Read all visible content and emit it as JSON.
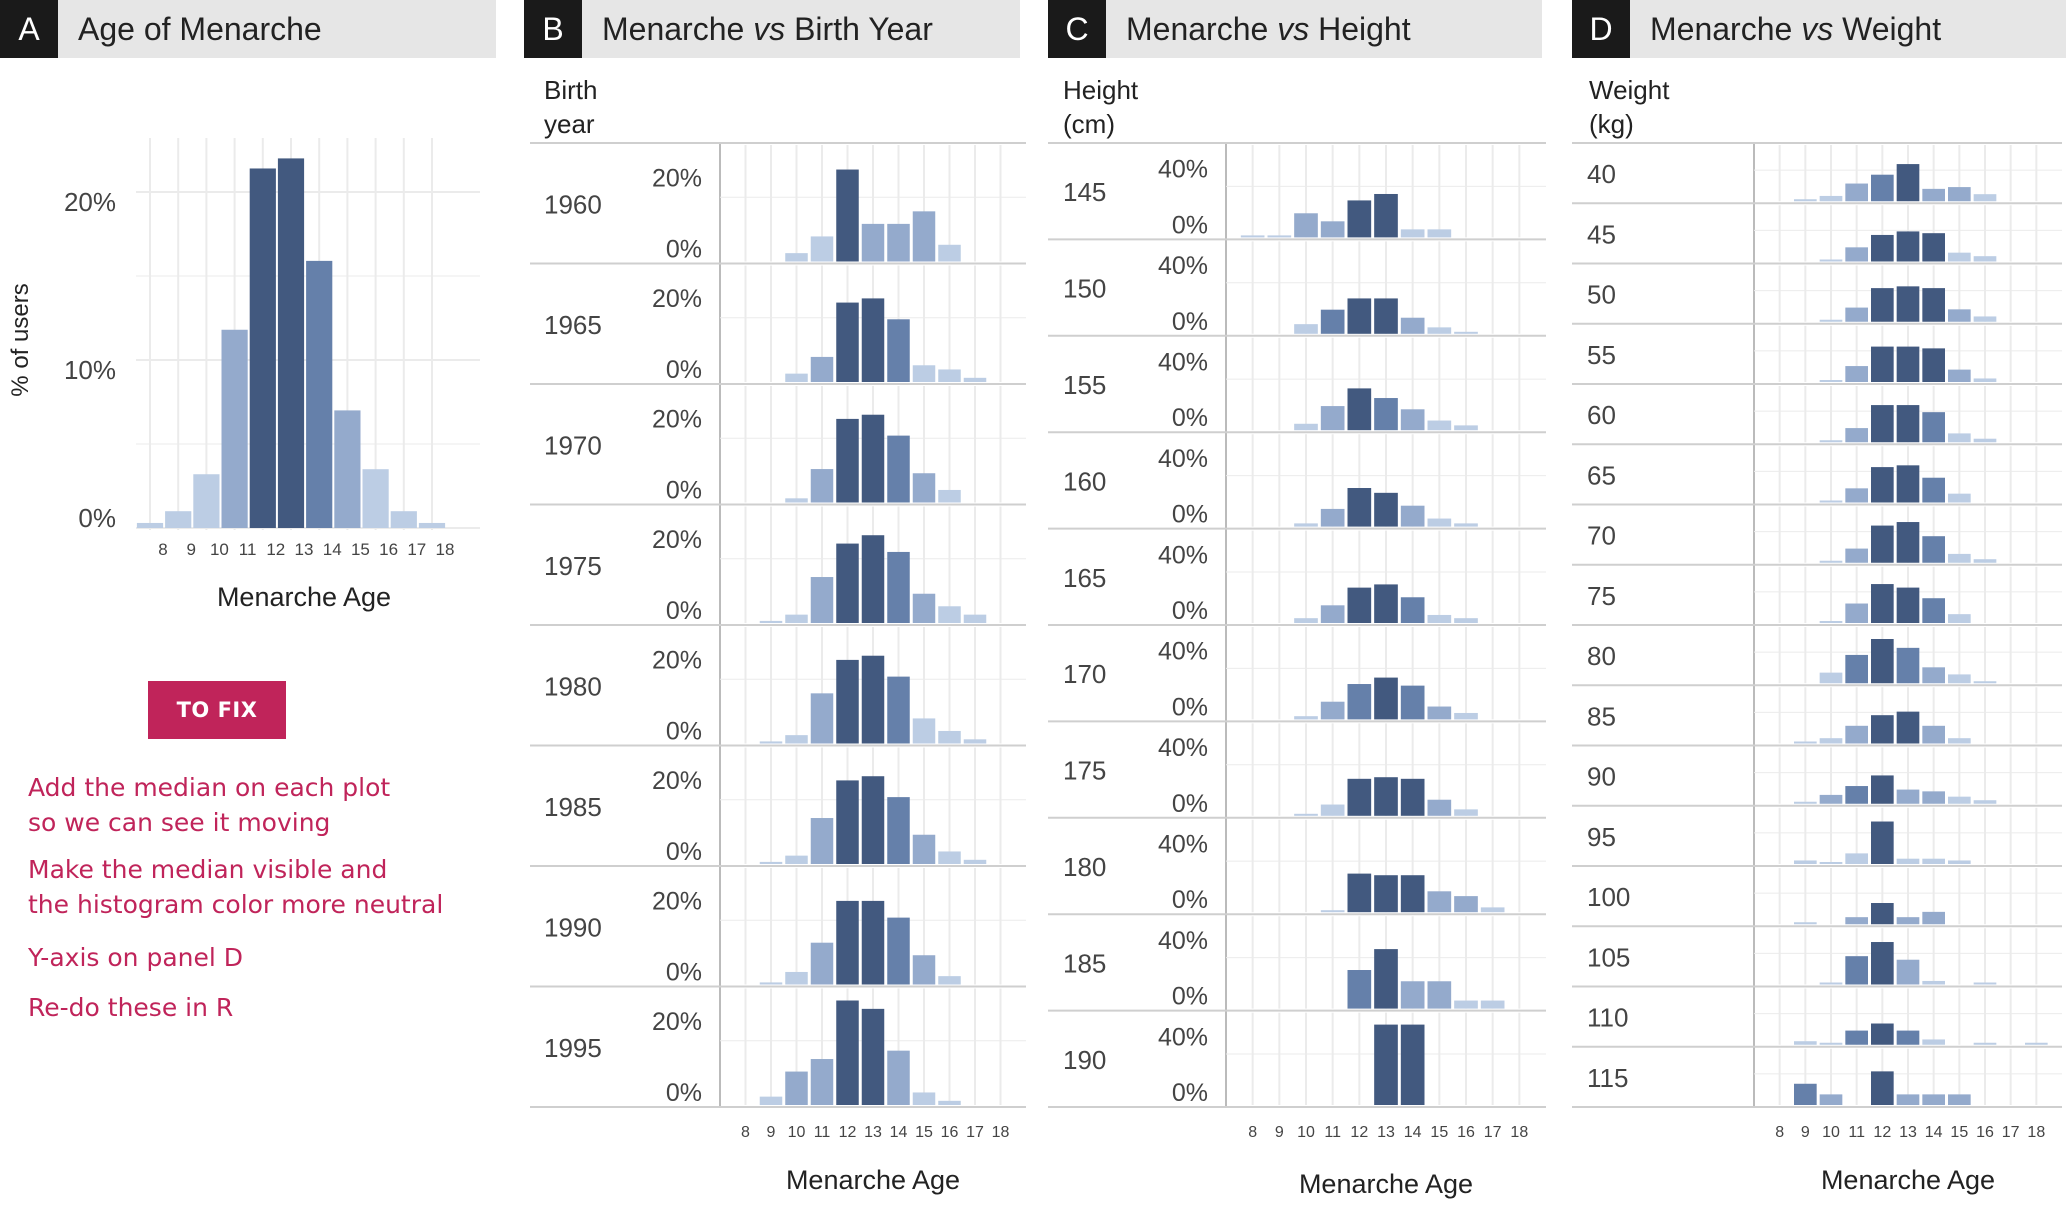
{
  "colors": {
    "dark": "#42597f",
    "mid": "#6580aa",
    "light": "#94aacc",
    "pale": "#bccde4",
    "grid": "#ebebeb",
    "header": "#e6e6e6",
    "badge": "#1a1a1a",
    "accent": "#c0245a"
  },
  "fix": {
    "button_label": "TO FIX",
    "notes": [
      "Add the median on each plot\nso we can see it moving",
      "Make the median visible and\nthe histogram color more neutral",
      "Y-axis on panel D",
      "Re-do these in R"
    ]
  },
  "chart_data": [
    {
      "id": "A",
      "letter": "A",
      "type": "bar",
      "title_parts": [
        {
          "t": "Age of Menarche",
          "i": false
        }
      ],
      "xlabel": "Menarche Age",
      "ylabel": "% of users",
      "categories": [
        "8",
        "9",
        "10",
        "11",
        "12",
        "13",
        "14",
        "15",
        "16",
        "17",
        "18"
      ],
      "yticks": [
        "0%",
        "10%",
        "20%"
      ],
      "values": [
        0.3,
        1.0,
        3.2,
        11.8,
        21.4,
        22.0,
        15.9,
        7.0,
        3.5,
        1.0,
        0.3
      ]
    },
    {
      "id": "B",
      "letter": "B",
      "type": "bar",
      "title_parts": [
        {
          "t": "Menarche ",
          "i": false
        },
        {
          "t": "vs",
          "i": true
        },
        {
          "t": " Birth Year",
          "i": false
        }
      ],
      "xlabel": "Menarche Age",
      "facet_label": [
        "Birth",
        "year"
      ],
      "categories": [
        "8",
        "9",
        "10",
        "11",
        "12",
        "13",
        "14",
        "15",
        "16",
        "17",
        "18"
      ],
      "yticks": [
        "0%",
        "20%"
      ],
      "facets": [
        {
          "label": "1960",
          "values": [
            0,
            0,
            2,
            6,
            22,
            9,
            9,
            12,
            4,
            0,
            0
          ]
        },
        {
          "label": "1965",
          "values": [
            0,
            0,
            2,
            6,
            19,
            20,
            15,
            4,
            3,
            1,
            0
          ]
        },
        {
          "label": "1970",
          "values": [
            0,
            0,
            1,
            8,
            20,
            21,
            16,
            7,
            3,
            0,
            0
          ]
        },
        {
          "label": "1975",
          "values": [
            0,
            0.5,
            2,
            11,
            19,
            21,
            17,
            7,
            4,
            2,
            0
          ]
        },
        {
          "label": "1980",
          "values": [
            0,
            0.5,
            2,
            12,
            20,
            21,
            16,
            6,
            3,
            1,
            0
          ]
        },
        {
          "label": "1985",
          "values": [
            0,
            0.5,
            2,
            11,
            20,
            21,
            16,
            7,
            3,
            1,
            0
          ]
        },
        {
          "label": "1990",
          "values": [
            0,
            0.5,
            3,
            10,
            20,
            20,
            16,
            7,
            2,
            0,
            0
          ]
        },
        {
          "label": "1995",
          "values": [
            0,
            2,
            8,
            11,
            25,
            23,
            13,
            3,
            1,
            0,
            0
          ]
        }
      ]
    },
    {
      "id": "C",
      "letter": "C",
      "type": "bar",
      "title_parts": [
        {
          "t": "Menarche ",
          "i": false
        },
        {
          "t": "vs",
          "i": true
        },
        {
          "t": " Height",
          "i": false
        }
      ],
      "xlabel": "Menarche Age",
      "facet_label": [
        "Height",
        "(cm)"
      ],
      "categories": [
        "8",
        "9",
        "10",
        "11",
        "12",
        "13",
        "14",
        "15",
        "16",
        "17",
        "18"
      ],
      "yticks": [
        "0%",
        "40%"
      ],
      "facets": [
        {
          "label": "145",
          "values": [
            1,
            1,
            15,
            10,
            23,
            27,
            5,
            5,
            0,
            0,
            0
          ]
        },
        {
          "label": "150",
          "values": [
            0,
            0,
            6,
            15,
            22,
            22,
            10,
            4,
            1,
            0,
            0
          ]
        },
        {
          "label": "155",
          "values": [
            0,
            0,
            4,
            15,
            26,
            20,
            13,
            6,
            3,
            0,
            0
          ]
        },
        {
          "label": "160",
          "values": [
            0,
            0,
            2,
            11,
            24,
            21,
            13,
            5,
            2,
            0,
            0
          ]
        },
        {
          "label": "165",
          "values": [
            0,
            0,
            3,
            11,
            22,
            24,
            16,
            5,
            3,
            0,
            0
          ]
        },
        {
          "label": "170",
          "values": [
            0,
            0,
            2,
            11,
            22,
            26,
            21,
            8,
            4,
            0,
            0
          ]
        },
        {
          "label": "175",
          "values": [
            0,
            0,
            1,
            7,
            23,
            24,
            23,
            10,
            4,
            0,
            0
          ]
        },
        {
          "label": "180",
          "values": [
            0,
            0,
            0,
            1,
            24,
            23,
            23,
            13,
            10,
            3,
            0
          ]
        },
        {
          "label": "185",
          "values": [
            0,
            0,
            0,
            0,
            24,
            37,
            17,
            17,
            5,
            5,
            0
          ]
        },
        {
          "label": "190",
          "values": [
            0,
            0,
            0,
            0,
            0,
            50,
            50,
            0,
            0,
            0,
            0
          ]
        }
      ]
    },
    {
      "id": "D",
      "letter": "D",
      "type": "bar",
      "title_parts": [
        {
          "t": "Menarche ",
          "i": false
        },
        {
          "t": "vs",
          "i": true
        },
        {
          "t": " Weight",
          "i": false
        }
      ],
      "xlabel": "Menarche Age",
      "facet_label": [
        "Weight",
        "(kg)"
      ],
      "categories": [
        "8",
        "9",
        "10",
        "11",
        "12",
        "13",
        "14",
        "15",
        "16",
        "17",
        "18"
      ],
      "yticks": [],
      "facets": [
        {
          "label": "40",
          "values": [
            0,
            1,
            3,
            10,
            15,
            21,
            7,
            8,
            4,
            0,
            0
          ]
        },
        {
          "label": "45",
          "values": [
            0,
            0,
            1,
            8,
            15,
            17,
            16,
            5,
            3,
            0,
            0
          ]
        },
        {
          "label": "50",
          "values": [
            0,
            0,
            1,
            8,
            19,
            20,
            19,
            7,
            3,
            0,
            0
          ]
        },
        {
          "label": "55",
          "values": [
            0,
            0,
            1,
            9,
            20,
            20,
            19,
            7,
            2,
            0,
            0
          ]
        },
        {
          "label": "60",
          "values": [
            0,
            0,
            1,
            8,
            21,
            21,
            17,
            5,
            2,
            0,
            0
          ]
        },
        {
          "label": "65",
          "values": [
            0,
            0,
            1,
            8,
            20,
            21,
            14,
            5,
            0,
            0,
            0
          ]
        },
        {
          "label": "70",
          "values": [
            0,
            0,
            1,
            8,
            21,
            23,
            15,
            5,
            2,
            0,
            0
          ]
        },
        {
          "label": "75",
          "values": [
            0,
            0,
            1,
            11,
            22,
            20,
            14,
            5,
            0,
            0,
            0
          ]
        },
        {
          "label": "80",
          "values": [
            0,
            0,
            6,
            16,
            25,
            20,
            9,
            5,
            1,
            0,
            0
          ]
        },
        {
          "label": "85",
          "values": [
            0,
            1,
            3,
            10,
            16,
            18,
            10,
            3,
            0,
            0,
            0
          ]
        },
        {
          "label": "90",
          "values": [
            0,
            1,
            5,
            10,
            16,
            8,
            7,
            4,
            2,
            0,
            0
          ]
        },
        {
          "label": "95",
          "values": [
            0,
            2,
            1,
            6,
            24,
            3,
            3,
            2,
            0,
            0,
            0
          ]
        },
        {
          "label": "100",
          "values": [
            0,
            1,
            0,
            4,
            12,
            4,
            7,
            0,
            0,
            0,
            0
          ]
        },
        {
          "label": "105",
          "values": [
            0,
            0,
            1,
            16,
            24,
            14,
            2,
            0,
            1,
            0,
            0
          ]
        },
        {
          "label": "110",
          "values": [
            0,
            2,
            1,
            8,
            12,
            8,
            3,
            0,
            1,
            0,
            1
          ]
        },
        {
          "label": "115",
          "values": [
            0,
            12,
            6,
            0,
            19,
            6,
            6,
            6,
            0,
            0,
            0
          ]
        }
      ]
    }
  ]
}
